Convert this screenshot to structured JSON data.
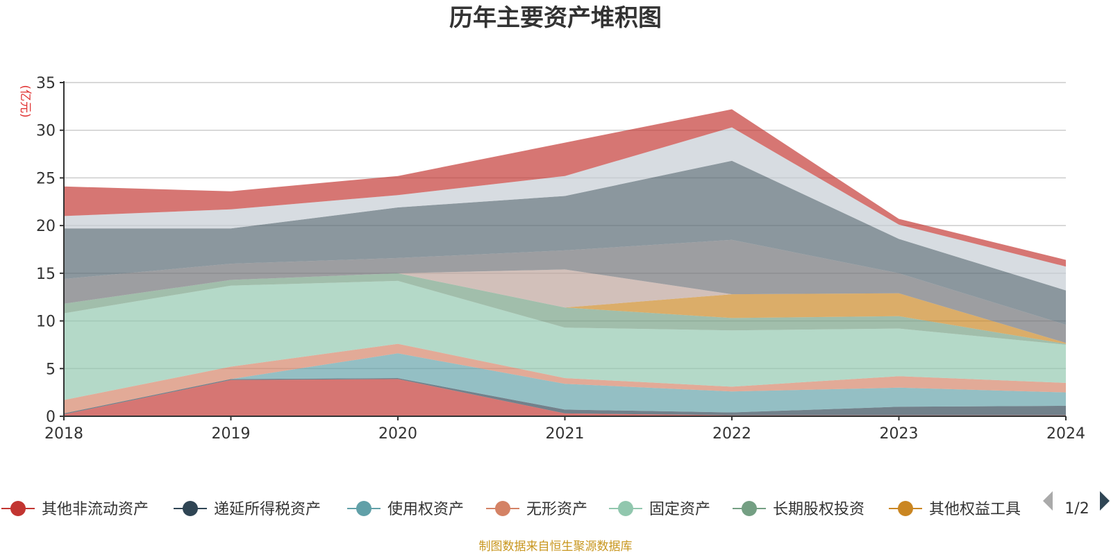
{
  "chart_data": {
    "type": "area",
    "stacked": true,
    "title": "历年主要资产堆积图",
    "unit_label": "(亿元)",
    "x": [
      "2018",
      "2019",
      "2020",
      "2021",
      "2022",
      "2023",
      "2024"
    ],
    "ylim": [
      0,
      35
    ],
    "yticks": [
      0,
      5,
      10,
      15,
      20,
      25,
      30,
      35
    ],
    "grid": true,
    "legend_position": "bottom",
    "legend_page": "1/2",
    "source_note": "制图数据来自恒生聚源数据库",
    "series": [
      {
        "name": "其他非流动资产",
        "color": "#c23531",
        "values": [
          0.2,
          3.8,
          3.9,
          0.3,
          0.1,
          0.1,
          0.1
        ]
      },
      {
        "name": "递延所得税资产",
        "color": "#2f4554",
        "values": [
          0.1,
          0.1,
          0.1,
          0.4,
          0.3,
          0.9,
          1.0
        ]
      },
      {
        "name": "使用权资产",
        "color": "#61a0a8",
        "values": [
          0.0,
          0.0,
          2.6,
          2.7,
          2.2,
          2.0,
          1.4
        ]
      },
      {
        "name": "无形资产",
        "color": "#d48265",
        "values": [
          1.4,
          1.3,
          1.0,
          0.6,
          0.5,
          1.2,
          1.0
        ]
      },
      {
        "name": "固定资产",
        "color": "#91c7ae",
        "values": [
          9.1,
          8.5,
          6.6,
          5.3,
          5.9,
          5.0,
          4.0
        ]
      },
      {
        "name": "长期股权投资",
        "color": "#749f83",
        "values": [
          1.0,
          0.6,
          0.8,
          2.1,
          1.3,
          1.3,
          0.1
        ]
      },
      {
        "name": "其他权益工具",
        "color": "#ca8622",
        "values": [
          0.0,
          0.0,
          0.0,
          0.0,
          2.5,
          2.4,
          0.1
        ]
      },
      {
        "name": "",
        "color": "#bda29a",
        "values": [
          0.0,
          0.0,
          0.0,
          4.0,
          0.0,
          0.0,
          0.0
        ]
      },
      {
        "name": "",
        "color": "#6e7074",
        "values": [
          2.6,
          1.7,
          1.6,
          2.0,
          5.7,
          2.1,
          1.9
        ]
      },
      {
        "name": "",
        "color": "#546570",
        "values": [
          5.3,
          3.7,
          5.3,
          5.7,
          8.3,
          3.6,
          3.6
        ]
      },
      {
        "name": "",
        "color": "#c4ccd3",
        "values": [
          1.3,
          2.0,
          1.3,
          2.1,
          3.5,
          1.5,
          2.5
        ]
      },
      {
        "name": "",
        "color": "#c23531",
        "values": [
          3.1,
          1.9,
          2.0,
          3.5,
          1.9,
          0.6,
          0.7
        ]
      }
    ]
  }
}
